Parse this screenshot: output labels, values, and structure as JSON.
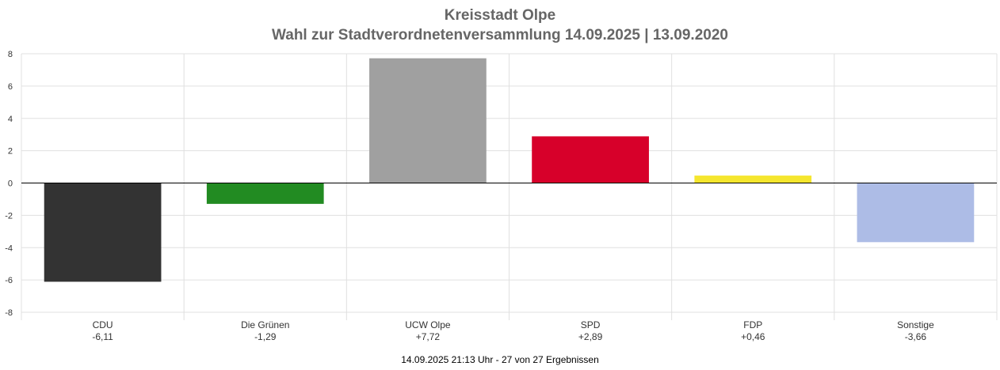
{
  "chart_data": {
    "type": "bar",
    "title": "Kreisstadt Olpe",
    "subtitle": "Wahl zur Stadtverordnetenversammlung 14.09.2025  | 13.09.2020",
    "categories": [
      "CDU",
      "Die Grünen",
      "UCW Olpe",
      "SPD",
      "FDP",
      "Sonstige"
    ],
    "value_labels": [
      "-6,11",
      "-1,29",
      "+7,72",
      "+2,89",
      "+0,46",
      "-3,66"
    ],
    "values": [
      -6.11,
      -1.29,
      7.72,
      2.89,
      0.46,
      -3.66
    ],
    "colors": [
      "#333333",
      "#228b22",
      "#a0a0a0",
      "#d7002a",
      "#f5e62e",
      "#adbce6"
    ],
    "ylim": [
      -8,
      8
    ],
    "yticks": [
      "8",
      "6",
      "4",
      "2",
      "0",
      "-2",
      "-4",
      "-6",
      "-8"
    ],
    "grid": true,
    "legend": "none"
  },
  "footer": "14.09.2025 21:13 Uhr - 27 von 27 Ergebnissen"
}
